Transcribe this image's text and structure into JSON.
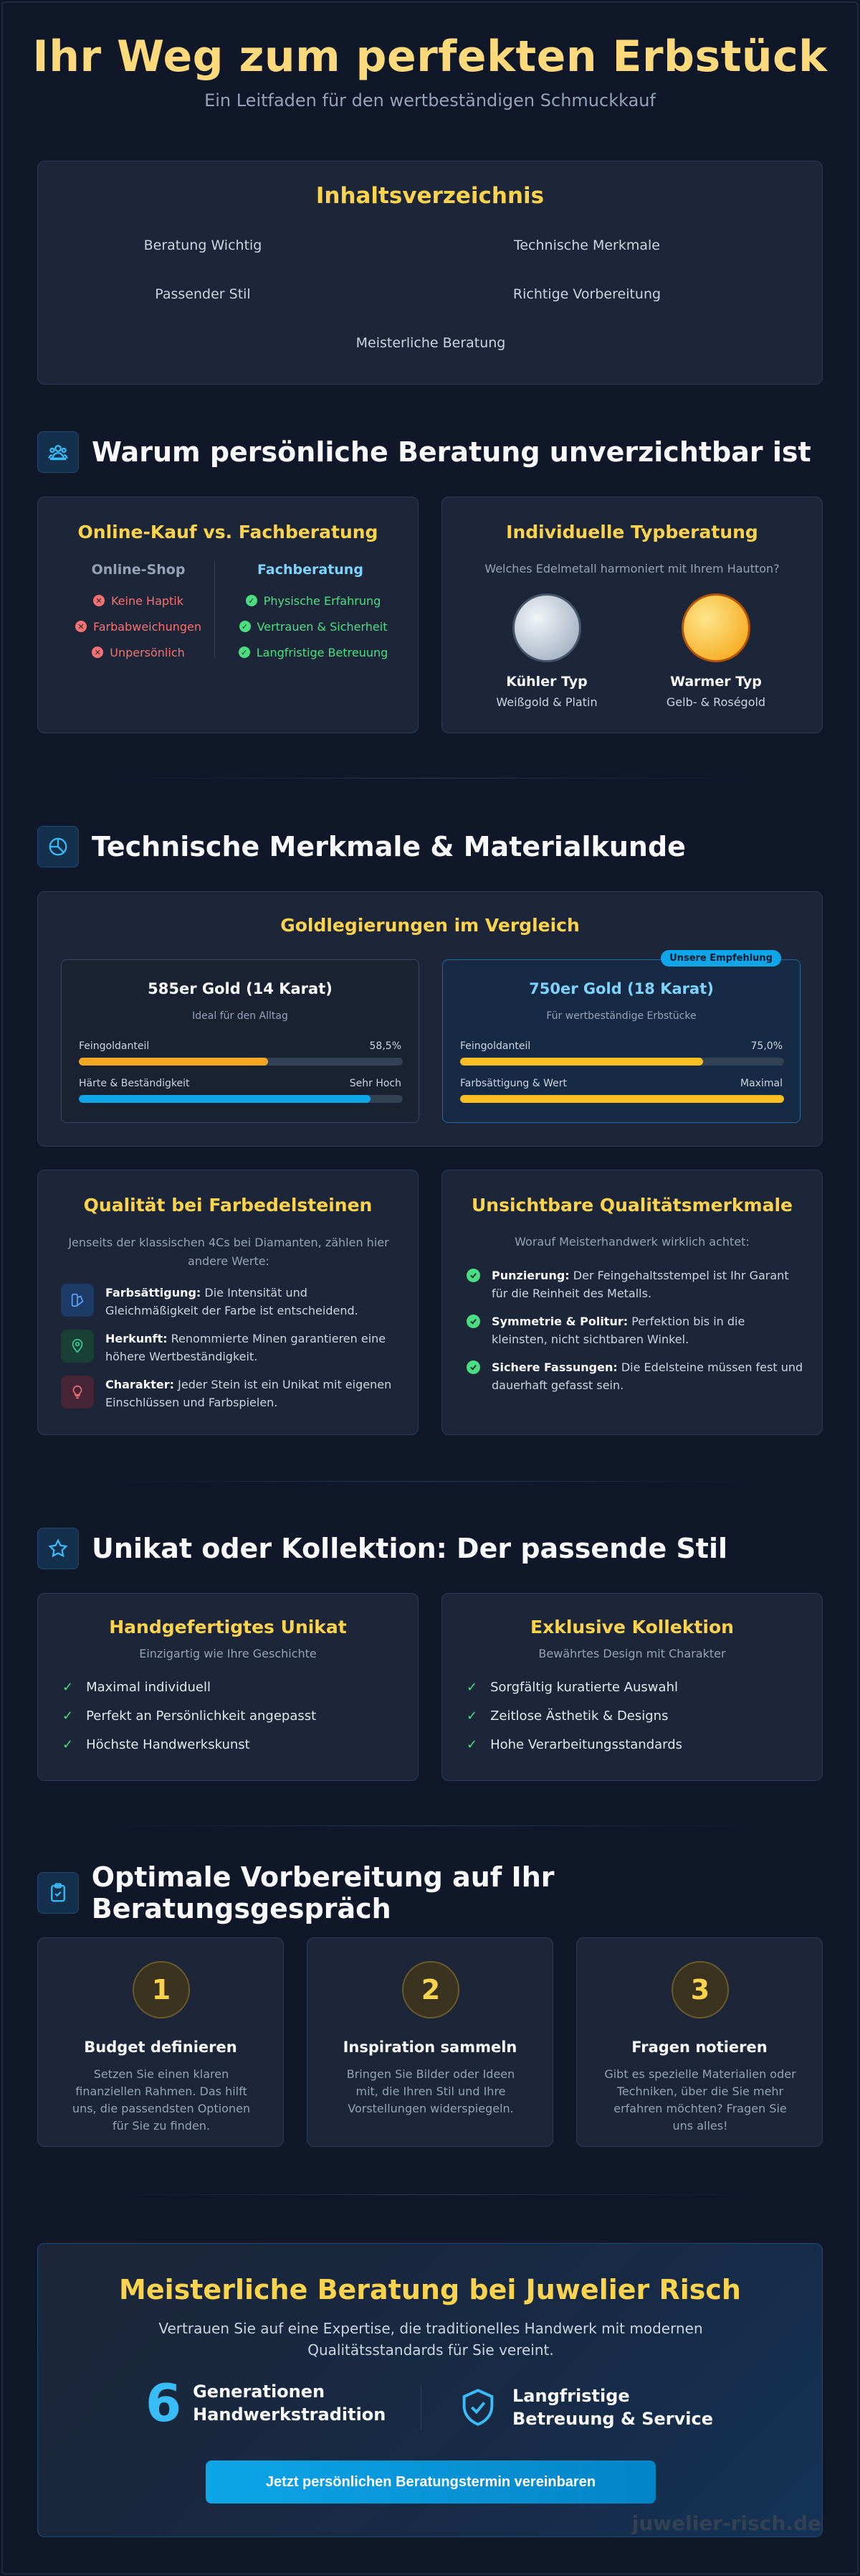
{
  "header": {
    "title": "Ihr Weg zum perfekten Erbstück",
    "subtitle": "Ein Leitfaden für den wertbeständigen Schmuckkauf"
  },
  "toc": {
    "title": "Inhaltsverzeichnis",
    "items": [
      "Beratung Wichtig",
      "Technische Merkmale",
      "Passender Stil",
      "Richtige Vorbereitung",
      "Meisterliche Beratung"
    ]
  },
  "section1": {
    "title": "Warum persönliche Beratung unverzichtbar ist",
    "icon": "users-icon",
    "compare": {
      "title": "Online-Kauf vs. Fachberatung",
      "left_head": "Online-Shop",
      "left_items": [
        "Keine Haptik",
        "Farbabweichungen",
        "Unpersönlich"
      ],
      "right_head": "Fachberatung",
      "right_items": [
        "Physische Erfahrung",
        "Vertrauen & Sicherheit",
        "Langfristige Betreuung"
      ]
    },
    "type": {
      "title": "Individuelle Typberatung",
      "subtitle": "Welches Edelmetall harmoniert mit Ihrem Hautton?",
      "cool_name": "Kühler Typ",
      "cool_desc": "Weißgold & Platin",
      "warm_name": "Warmer Typ",
      "warm_desc": "Gelb- & Roségold"
    }
  },
  "section2": {
    "title": "Technische Merkmale & Materialkunde",
    "icon": "ring-icon",
    "gold": {
      "title": "Goldlegierungen im Vergleich",
      "card1": {
        "name": "585er Gold (14 Karat)",
        "desc": "Ideal für den Alltag",
        "bar1_label": "Feingoldanteil",
        "bar1_value": "58,5%",
        "bar1_fraction": 0.585,
        "bar2_label": "Härte & Beständigkeit",
        "bar2_value": "Sehr Hoch",
        "bar2_fraction": 0.9
      },
      "card2": {
        "badge": "Unsere Empfehlung",
        "name": "750er Gold (18 Karat)",
        "desc": "Für wertbeständige Erbstücke",
        "bar1_label": "Feingoldanteil",
        "bar1_value": "75,0%",
        "bar1_fraction": 0.75,
        "bar2_label": "Farbsättigung & Wert",
        "bar2_value": "Maximal",
        "bar2_fraction": 1.0
      }
    },
    "gems": {
      "title": "Qualität bei Farbedelsteinen",
      "subtitle": "Jenseits der klassischen 4Cs bei Diamanten, zählen hier andere Werte:",
      "items": [
        {
          "bold": "Farbsättigung:",
          "text": " Die Intensität und Gleichmäßigkeit der Farbe ist entscheidend."
        },
        {
          "bold": "Herkunft:",
          "text": " Renommierte Minen garantieren eine höhere Wertbeständigkeit."
        },
        {
          "bold": "Charakter:",
          "text": " Jeder Stein ist ein Unikat mit eigenen Einschlüssen und Farbspielen."
        }
      ]
    },
    "hidden": {
      "title": "Unsichtbare Qualitätsmerkmale",
      "subtitle": "Worauf Meisterhandwerk wirklich achtet:",
      "items": [
        {
          "bold": "Punzierung:",
          "text": " Der Feingehaltsstempel ist Ihr Garant für die Reinheit des Metalls."
        },
        {
          "bold": "Symmetrie & Politur:",
          "text": " Perfektion bis in die kleinsten, nicht sichtbaren Winkel."
        },
        {
          "bold": "Sichere Fassungen:",
          "text": " Die Edelsteine müssen fest und dauerhaft gefasst sein."
        }
      ]
    }
  },
  "section3": {
    "title": "Unikat oder Kollektion: Der passende Stil",
    "icon": "star-icon",
    "unikat": {
      "title": "Handgefertigtes Unikat",
      "subtitle": "Einzigartig wie Ihre Geschichte",
      "items": [
        "Maximal individuell",
        "Perfekt an Persönlichkeit angepasst",
        "Höchste Handwerkskunst"
      ]
    },
    "kollektion": {
      "title": "Exklusive Kollektion",
      "subtitle": "Bewährtes Design mit Charakter",
      "items": [
        "Sorgfältig kuratierte Auswahl",
        "Zeitlose Ästhetik & Designs",
        "Hohe Verarbeitungsstandards"
      ]
    }
  },
  "section4": {
    "title": "Optimale Vorbereitung auf Ihr Beratungsgespräch",
    "icon": "clipboard-icon",
    "steps": [
      {
        "num": "1",
        "title": "Budget definieren",
        "text": "Setzen Sie einen klaren finanziellen Rahmen. Das hilft uns, die passendsten Optionen für Sie zu finden."
      },
      {
        "num": "2",
        "title": "Inspiration sammeln",
        "text": "Bringen Sie Bilder oder Ideen mit, die Ihren Stil und Ihre Vorstellungen widerspiegeln."
      },
      {
        "num": "3",
        "title": "Fragen notieren",
        "text": "Gibt es spezielle Materialien oder Techniken, über die Sie mehr erfahren möchten? Fragen Sie uns alles!"
      }
    ]
  },
  "cta": {
    "title": "Meisterliche Beratung bei Juwelier Risch",
    "text": "Vertrauen Sie auf eine Expertise, die traditionelles Handwerk mit modernen Qualitätsstandards für Sie vereint.",
    "stat_num": "6",
    "stat_line1": "Generationen",
    "stat_line2": "Handwerkstradition",
    "shield_line1": "Langfristige",
    "shield_line2": "Betreuung & Service",
    "button": "Jetzt persönlichen Beratungstermin vereinbaren"
  },
  "footer": {
    "brand": "juwelier-risch.de"
  }
}
